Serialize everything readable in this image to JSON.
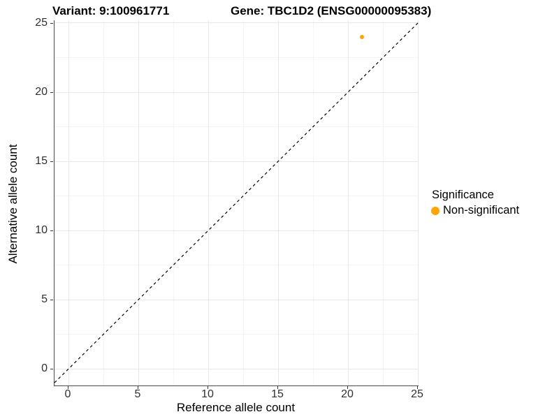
{
  "titles": {
    "variant": "Variant: 9:100961771",
    "gene": "Gene: TBC1D2 (ENSG00000095383)"
  },
  "chart_data": {
    "type": "scatter",
    "title_left": "Variant: 9:100961771",
    "title_right": "Gene: TBC1D2 (ENSG00000095383)",
    "xlabel": "Reference allele count",
    "ylabel": "Alternative allele count",
    "xlim": [
      -1.0,
      25.05
    ],
    "ylim": [
      -1.2,
      25.2
    ],
    "xticks": [
      0,
      5,
      10,
      15,
      20,
      25
    ],
    "yticks": [
      0,
      5,
      10,
      15,
      20,
      25
    ],
    "minor_xticks": [
      2.5,
      7.5,
      12.5,
      17.5,
      22.5
    ],
    "minor_yticks": [
      2.5,
      7.5,
      12.5,
      17.5,
      22.5
    ],
    "grid": true,
    "reference_line": {
      "type": "abline",
      "slope": 1,
      "intercept": 0,
      "style": "dashed",
      "color": "#000000"
    },
    "series": [
      {
        "name": "Non-significant",
        "color": "#FFA500",
        "points": [
          {
            "x": 21,
            "y": 24
          }
        ]
      }
    ],
    "legend": {
      "position": "right",
      "title": "Significance",
      "items": [
        {
          "label": "Non-significant",
          "color": "#FFA500"
        }
      ]
    }
  },
  "colors": {
    "point_orange": "#FFA500",
    "axis_line": "#4a4a4a",
    "grid_major": "#e8e8e8",
    "grid_minor": "#f4f4f4",
    "tick_text": "#303030"
  }
}
